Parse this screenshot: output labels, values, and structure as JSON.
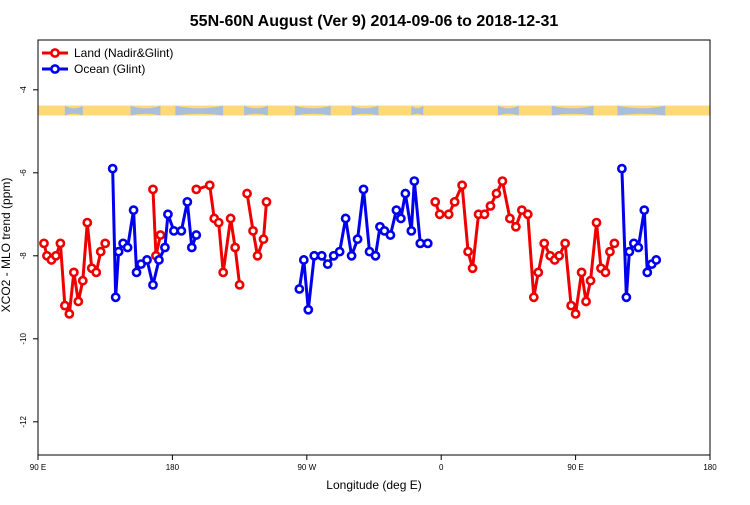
{
  "chart_data": {
    "type": "line",
    "title": "55N-60N August (Ver 9)   2014-09-06 to 2018-12-31",
    "xlabel": "Longitude (deg E)",
    "ylabel": "XCO2 - MLO trend (ppm)",
    "xlim": [
      90,
      540
    ],
    "ylim": [
      -12.8,
      -2.8
    ],
    "grid": false,
    "legend_position": "top-left",
    "x_ticks": [
      {
        "value": 90,
        "label": "90 E"
      },
      {
        "value": 180,
        "label": "180"
      },
      {
        "value": 270,
        "label": "90 W"
      },
      {
        "value": 360,
        "label": "0"
      },
      {
        "value": 450,
        "label": "90 E"
      },
      {
        "value": 540,
        "label": "180"
      }
    ],
    "y_ticks": [
      {
        "value": -4,
        "label": "-4"
      },
      {
        "value": -6,
        "label": "-6"
      },
      {
        "value": -8,
        "label": "-8"
      },
      {
        "value": -10,
        "label": "-10"
      },
      {
        "value": -12,
        "label": "-12"
      }
    ],
    "land_band": {
      "y_center": -4.5,
      "height": 0.24,
      "land_color": "#ffd976",
      "ocean_color": "#a7bfdd"
    },
    "series": [
      {
        "name": "Land (Nadir&Glint)",
        "color": "#ee0000",
        "segments": [
          [
            [
              94,
              -7.7
            ],
            [
              96,
              -8.0
            ],
            [
              99,
              -8.1
            ],
            [
              102,
              -8.0
            ],
            [
              105,
              -7.7
            ],
            [
              108,
              -9.2
            ],
            [
              111,
              -9.4
            ],
            [
              114,
              -8.4
            ],
            [
              117,
              -9.1
            ],
            [
              120,
              -8.6
            ],
            [
              123,
              -7.2
            ],
            [
              126,
              -8.3
            ],
            [
              129,
              -8.4
            ],
            [
              132,
              -7.9
            ],
            [
              135,
              -7.7
            ]
          ],
          [
            [
              167,
              -6.4
            ],
            [
              169,
              -8.0
            ],
            [
              172,
              -7.5
            ]
          ],
          [
            [
              196,
              -6.4
            ],
            [
              205,
              -6.3
            ],
            [
              208,
              -7.1
            ],
            [
              211,
              -7.2
            ],
            [
              214,
              -8.4
            ],
            [
              219,
              -7.1
            ],
            [
              222,
              -7.8
            ],
            [
              225,
              -8.7
            ]
          ],
          [
            [
              230,
              -6.5
            ],
            [
              234,
              -7.4
            ],
            [
              237,
              -8.0
            ],
            [
              241,
              -7.6
            ],
            [
              243,
              -6.7
            ]
          ],
          [
            [
              356,
              -6.7
            ],
            [
              359,
              -7.0
            ],
            [
              365,
              -7.0
            ],
            [
              369,
              -6.7
            ],
            [
              374,
              -6.3
            ],
            [
              378,
              -7.9
            ],
            [
              381,
              -8.3
            ],
            [
              385,
              -7.0
            ],
            [
              389,
              -7.0
            ],
            [
              393,
              -6.8
            ],
            [
              397,
              -6.5
            ],
            [
              401,
              -6.2
            ],
            [
              406,
              -7.1
            ],
            [
              410,
              -7.3
            ],
            [
              414,
              -6.9
            ],
            [
              418,
              -7.0
            ],
            [
              422,
              -9.0
            ],
            [
              425,
              -8.4
            ],
            [
              429,
              -7.7
            ],
            [
              433,
              -8.0
            ],
            [
              436,
              -8.1
            ],
            [
              439,
              -8.0
            ],
            [
              443,
              -7.7
            ],
            [
              447,
              -9.2
            ],
            [
              450,
              -9.4
            ],
            [
              454,
              -8.4
            ],
            [
              457,
              -9.1
            ],
            [
              460,
              -8.6
            ],
            [
              464,
              -7.2
            ],
            [
              467,
              -8.3
            ],
            [
              470,
              -8.4
            ],
            [
              473,
              -7.9
            ],
            [
              476,
              -7.7
            ]
          ]
        ]
      },
      {
        "name": "Ocean (Glint)",
        "color": "#0000ee",
        "segments": [
          [
            [
              140,
              -5.9
            ],
            [
              142,
              -9.0
            ],
            [
              144,
              -7.9
            ],
            [
              147,
              -7.7
            ],
            [
              150,
              -7.8
            ],
            [
              154,
              -6.9
            ],
            [
              156,
              -8.4
            ],
            [
              159,
              -8.2
            ],
            [
              163,
              -8.1
            ],
            [
              167,
              -8.7
            ],
            [
              171,
              -8.1
            ],
            [
              175,
              -7.8
            ],
            [
              177,
              -7.0
            ],
            [
              181,
              -7.4
            ],
            [
              186,
              -7.4
            ],
            [
              190,
              -6.7
            ],
            [
              193,
              -7.8
            ],
            [
              196,
              -7.5
            ]
          ],
          [
            [
              265,
              -8.8
            ],
            [
              268,
              -8.1
            ],
            [
              271,
              -9.3
            ],
            [
              275,
              -8.0
            ]
          ],
          [
            [
              280,
              -8.0
            ],
            [
              284,
              -8.2
            ],
            [
              288,
              -8.0
            ],
            [
              292,
              -7.9
            ],
            [
              296,
              -7.1
            ],
            [
              300,
              -8.0
            ],
            [
              304,
              -7.6
            ],
            [
              308,
              -6.4
            ],
            [
              312,
              -7.9
            ],
            [
              316,
              -8.0
            ],
            [
              319,
              -7.3
            ],
            [
              322,
              -7.4
            ],
            [
              326,
              -7.5
            ],
            [
              330,
              -6.9
            ],
            [
              333,
              -7.1
            ],
            [
              336,
              -6.5
            ],
            [
              340,
              -7.4
            ],
            [
              342,
              -6.2
            ],
            [
              346,
              -7.7
            ]
          ],
          [
            [
              351,
              -7.7
            ]
          ],
          [
            [
              481,
              -5.9
            ],
            [
              484,
              -9.0
            ],
            [
              486,
              -7.9
            ],
            [
              489,
              -7.7
            ],
            [
              492,
              -7.8
            ],
            [
              496,
              -6.9
            ],
            [
              498,
              -8.4
            ],
            [
              501,
              -8.2
            ],
            [
              504,
              -8.1
            ]
          ]
        ]
      }
    ]
  }
}
